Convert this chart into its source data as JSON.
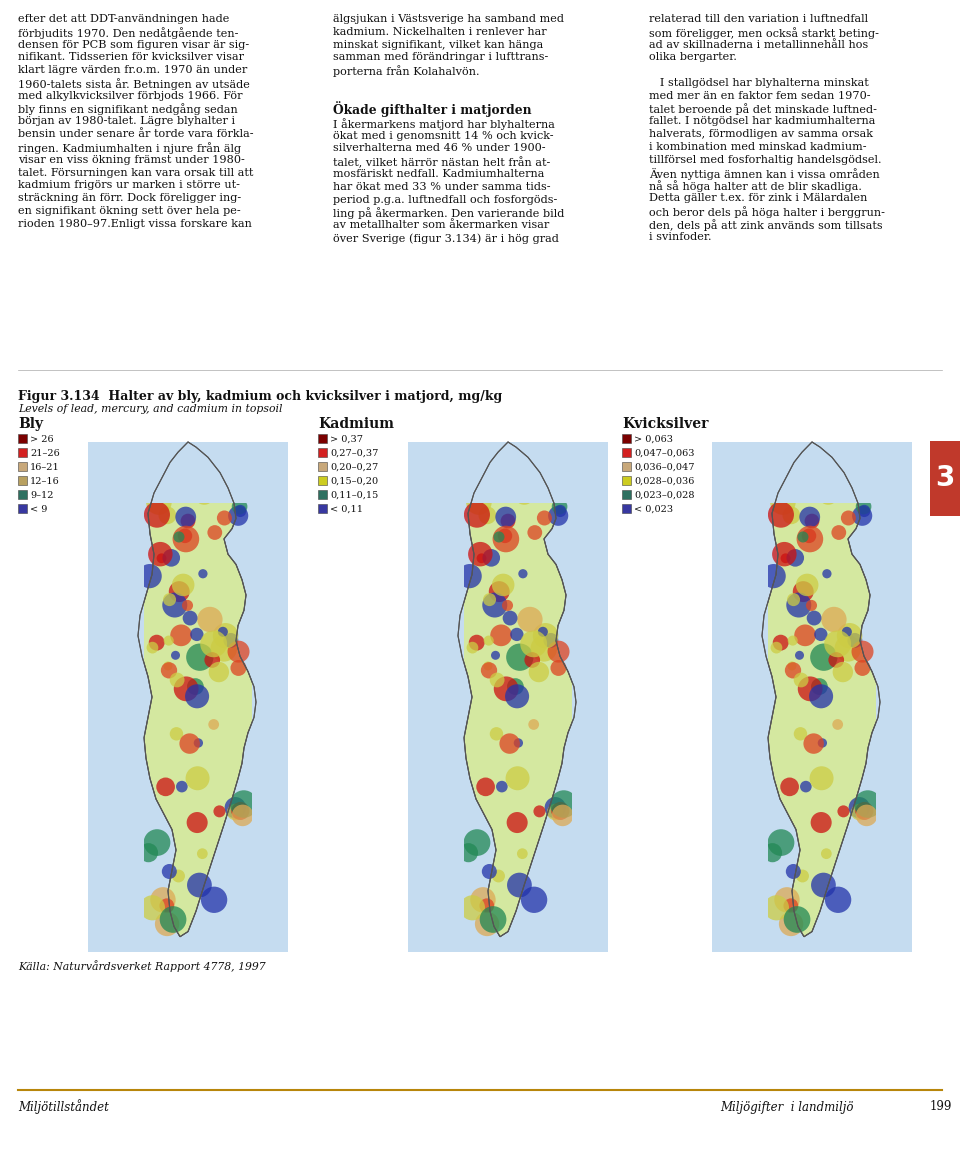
{
  "page_bg": "#ffffff",
  "fig_title_bold": "Figur 3.134  Halter av bly, kadmium och kvicksilver i matjord, mg/kg",
  "fig_subtitle": "Levels of lead, mercury, and cadmium in topsoil",
  "map_titles": [
    "Bly",
    "Kadmium",
    "Kvicksilver"
  ],
  "legend_bly": [
    {
      "color": "#7B0000",
      "label": "> 26"
    },
    {
      "color": "#D42020",
      "label": "21–26"
    },
    {
      "color": "#C8A87A",
      "label": "16–21"
    },
    {
      "color": "#B8A060",
      "label": "12–16"
    },
    {
      "color": "#2E7060",
      "label": "9–12"
    },
    {
      "color": "#3838A0",
      "label": "< 9"
    }
  ],
  "legend_kadmium": [
    {
      "color": "#7B0000",
      "label": "> 0,37"
    },
    {
      "color": "#D42020",
      "label": "0,27–0,37"
    },
    {
      "color": "#C8A87A",
      "label": "0,20–0,27"
    },
    {
      "color": "#CCCC20",
      "label": "0,15–0,20"
    },
    {
      "color": "#2E7060",
      "label": "0,11–0,15"
    },
    {
      "color": "#3838A0",
      "label": "< 0,11"
    }
  ],
  "legend_kvicksilver": [
    {
      "color": "#7B0000",
      "label": "> 0,063"
    },
    {
      "color": "#D42020",
      "label": "0,047–0,063"
    },
    {
      "color": "#C8A87A",
      "label": "0,036–0,047"
    },
    {
      "color": "#CCCC20",
      "label": "0,028–0,036"
    },
    {
      "color": "#2E7060",
      "label": "0,023–0,028"
    },
    {
      "color": "#3838A0",
      "label": "< 0,023"
    }
  ],
  "source_text": "Källa: Naturvårdsverket Rapport 4778, 1997",
  "footer_left": "Miljötillståndet",
  "footer_right": "Miljögifter  i landmiljö",
  "footer_page": "199",
  "tab_color": "#C0392B",
  "tab_number": "3",
  "col1_lines": [
    "efter det att DDT-användningen hade",
    "förbjudits 1970. Den nedåtgående ten-",
    "densen för PCB som figuren visar är sig-",
    "nifikant. Tidsserien för kvicksilver visar",
    "klart lägre värden fr.o.m. 1970 än under",
    "1960-talets sista år. Betningen av utsäde",
    "med alkylkvicksilver förbjods 1966. För",
    "bly finns en signifikant nedgång sedan",
    "början av 1980-talet. Lägre blyhalter i",
    "bensin under senare år torde vara förkla-",
    "ringen. Kadmiumhalten i njure från älg",
    "visar en viss ökning främst under 1980-",
    "talet. Försurningen kan vara orsak till att",
    "kadmium frigörs ur marken i större ut-",
    "sträckning än förr. Dock föreligger ing-",
    "en signifikant ökning sett över hela pe-",
    "rioden 1980–97.Enligt vissa forskare kan"
  ],
  "col2_lines_a": [
    "älgsjukan i Västsverige ha samband med",
    "kadmium. Nickelhalten i renlever har",
    "minskat signifikant, vilket kan hänga",
    "samman med förändringar i lufttrans-",
    "porterna från Kolahalvön."
  ],
  "col2_heading": "Ökade gifthalter i matjorden",
  "col2_lines_b": [
    "I åkermarkens matjord har blyhalterna",
    "ökat med i genomsnitt 14 % och kvick-",
    "silverhalterna med 46 % under 1900-",
    "talet, vilket härrör nästan helt från at-",
    "mosfäriskt nedfall. Kadmiumhalterna",
    "har ökat med 33 % under samma tids-",
    "period p.g.a. luftnedfall och fosforgöds-",
    "ling på åkermarken. Den varierande bild",
    "av metallhalter som åkermarken visar",
    "över Sverige (figur 3.134) är i hög grad"
  ],
  "col3_lines": [
    "relaterad till den variation i luftnedfall",
    "som föreligger, men också starkt beting-",
    "ad av skillnaderna i metallinnehåll hos",
    "olika bergarter.",
    "",
    "   I stallgödsel har blyhalterna minskat",
    "med mer än en faktor fem sedan 1970-",
    "talet beroende på det minskade luftned-",
    "fallet. I nötgödsel har kadmiumhalterna",
    "halverats, förmodligen av samma orsak",
    "i kombination med minskad kadmium-",
    "tillförsel med fosforhaltig handelsgödsel.",
    "Även nyttiga ämnen kan i vissa områden",
    "nå så höga halter att de blir skadliga.",
    "Detta gäller t.ex. för zink i Mälardalen",
    "och beror dels på höga halter i berggrun-",
    "den, dels på att zink används som tillsats",
    "i svinfoder."
  ]
}
